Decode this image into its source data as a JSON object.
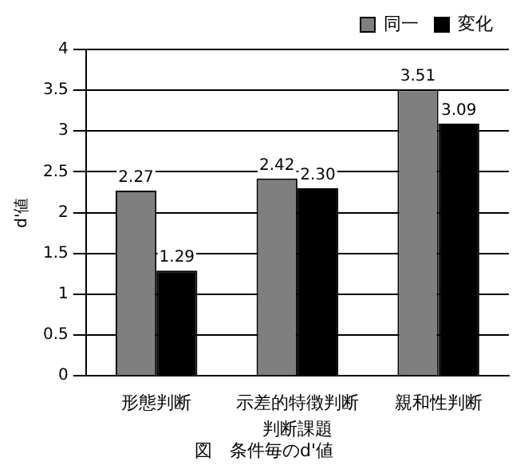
{
  "chart_data": {
    "type": "bar",
    "categories": [
      "形態判断",
      "示差的特徴判断",
      "親和性判断"
    ],
    "series": [
      {
        "name": "同一",
        "color": "#7f7f7f",
        "values": [
          2.27,
          2.42,
          3.51
        ]
      },
      {
        "name": "変化",
        "color": "#000000",
        "values": [
          1.29,
          2.3,
          3.09
        ]
      }
    ],
    "xlabel": "判断課題",
    "ylabel": "d'値",
    "annotations": [
      "図　条件毎のd'値"
    ],
    "ylim": [
      0,
      4
    ],
    "yticks": [
      0,
      0.5,
      1,
      1.5,
      2,
      2.5,
      3,
      3.5,
      4
    ],
    "grid": "y",
    "legend": "top right",
    "value_labels": [
      [
        "2.27",
        "2.42",
        "3.51"
      ],
      [
        "1.29",
        "2.30",
        "3.09"
      ]
    ]
  }
}
